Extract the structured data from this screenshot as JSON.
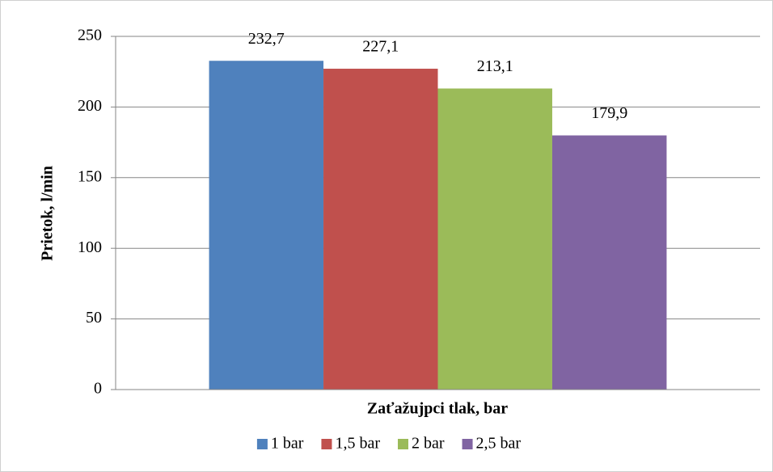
{
  "chart_data": {
    "type": "bar",
    "y_label": "Prietok, l/min",
    "x_label": "Zaťažujpci tlak, bar",
    "categories": [
      null
    ],
    "series": [
      {
        "name": "1 bar",
        "color": "#4f81bd",
        "values": [
          232.7
        ],
        "value_labels": [
          "232,7"
        ]
      },
      {
        "name": "1,5 bar",
        "color": "#c0504d",
        "values": [
          227.1
        ],
        "value_labels": [
          "227,1"
        ]
      },
      {
        "name": "2 bar",
        "color": "#9bbb59",
        "values": [
          213.1
        ],
        "value_labels": [
          "213,1"
        ]
      },
      {
        "name": "2,5 bar",
        "color": "#8064a2",
        "values": [
          179.9
        ],
        "value_labels": [
          "179,9"
        ]
      }
    ],
    "ylim": [
      0,
      250
    ],
    "yticks": [
      0,
      50,
      100,
      150,
      200,
      250
    ],
    "grid": true,
    "legend": "bottom"
  }
}
